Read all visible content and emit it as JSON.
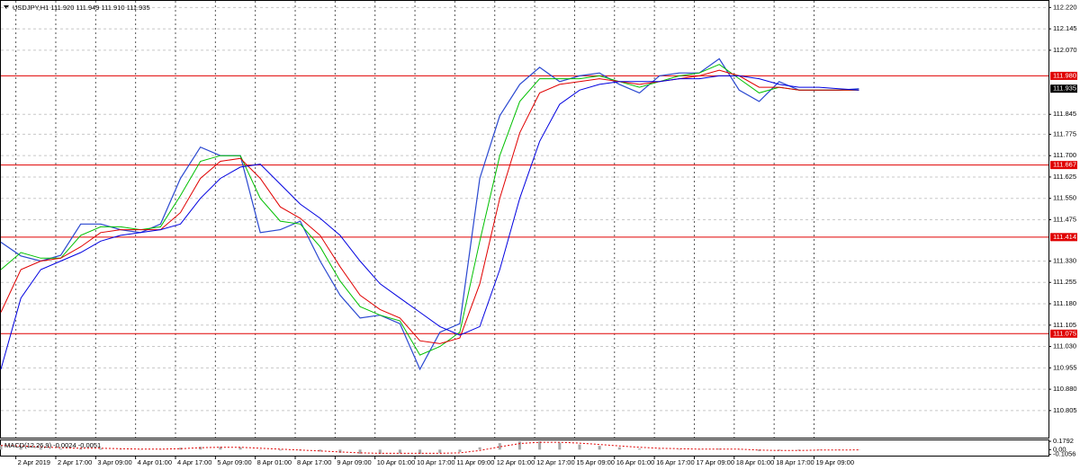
{
  "chart_data": [
    {
      "type": "line",
      "title": "USDJPY,H1  111.920 111.949 111.910 111.935",
      "x": [
        0,
        8,
        16,
        24,
        32,
        40,
        48,
        56,
        64,
        72,
        80,
        88,
        96,
        104,
        112,
        120,
        128,
        136,
        144,
        152,
        160,
        168,
        176,
        184,
        192,
        200,
        208,
        216,
        224,
        232,
        240,
        248,
        256,
        264,
        272,
        280,
        288,
        296,
        304,
        312,
        320,
        328,
        336,
        344
      ],
      "xlim": [
        0,
        420
      ],
      "xticks": [
        {
          "value": 6,
          "label": "2 Apr 2019"
        },
        {
          "value": 22,
          "label": "2 Apr 17:00"
        },
        {
          "value": 38,
          "label": "3 Apr 09:00"
        },
        {
          "value": 54,
          "label": "4 Apr 01:00"
        },
        {
          "value": 70,
          "label": "4 Apr 17:00"
        },
        {
          "value": 86,
          "label": "5 Apr 09:00"
        },
        {
          "value": 102,
          "label": "8 Apr 01:00"
        },
        {
          "value": 118,
          "label": "8 Apr 17:00"
        },
        {
          "value": 134,
          "label": "9 Apr 09:00"
        },
        {
          "value": 150,
          "label": "10 Apr 01:00"
        },
        {
          "value": 166,
          "label": "10 Apr 17:00"
        },
        {
          "value": 182,
          "label": "11 Apr 09:00"
        },
        {
          "value": 198,
          "label": "12 Apr 01:00"
        },
        {
          "value": 214,
          "label": "12 Apr 17:00"
        },
        {
          "value": 230,
          "label": "15 Apr 09:00"
        },
        {
          "value": 246,
          "label": "16 Apr 01:00"
        },
        {
          "value": 262,
          "label": "16 Apr 17:00"
        },
        {
          "value": 278,
          "label": "17 Apr 09:00"
        },
        {
          "value": 294,
          "label": "18 Apr 01:00"
        },
        {
          "value": 310,
          "label": "18 Apr 17:00"
        },
        {
          "value": 326,
          "label": "19 Apr 09:00"
        }
      ],
      "ylim": [
        110.71,
        112.24
      ],
      "yticks": [
        {
          "value": 112.22,
          "label": "112.220"
        },
        {
          "value": 112.145,
          "label": "112.145"
        },
        {
          "value": 112.07,
          "label": "112.070"
        },
        {
          "value": 111.845,
          "label": "111.845"
        },
        {
          "value": 111.775,
          "label": "111.775"
        },
        {
          "value": 111.7,
          "label": "111.700"
        },
        {
          "value": 111.625,
          "label": "111.625"
        },
        {
          "value": 111.55,
          "label": "111.550"
        },
        {
          "value": 111.475,
          "label": "111.475"
        },
        {
          "value": 111.33,
          "label": "111.330"
        },
        {
          "value": 111.255,
          "label": "111.255"
        },
        {
          "value": 111.18,
          "label": "111.180"
        },
        {
          "value": 111.105,
          "label": "111.105"
        },
        {
          "value": 111.03,
          "label": "111.030"
        },
        {
          "value": 110.955,
          "label": "110.955"
        },
        {
          "value": 110.88,
          "label": "110.880"
        },
        {
          "value": 110.805,
          "label": "110.805"
        }
      ],
      "grid": true,
      "levels": [
        {
          "value": 111.98,
          "label": "111.980"
        },
        {
          "value": 111.667,
          "label": "111.667"
        },
        {
          "value": 111.414,
          "label": "111.414"
        },
        {
          "value": 111.075,
          "label": "111.075"
        }
      ],
      "level_color": "#e00000",
      "last": {
        "value": 111.935,
        "label": "111.935"
      },
      "series": [
        {
          "color": "#2a48d0",
          "width": 1.2,
          "values": [
            111.396,
            111.348,
            111.33,
            111.35,
            111.46,
            111.46,
            111.44,
            111.43,
            111.46,
            111.62,
            111.73,
            111.7,
            111.7,
            111.43,
            111.44,
            111.47,
            111.33,
            111.21,
            111.13,
            111.14,
            111.11,
            110.95,
            111.08,
            111.11,
            111.62,
            111.84,
            111.95,
            112.01,
            111.96,
            111.98,
            111.99,
            111.95,
            111.92,
            111.98,
            111.99,
            111.99,
            112.04,
            111.93,
            111.89,
            111.96,
            111.93,
            111.93,
            111.93,
            111.935
          ]
        },
        {
          "color": "#00c000",
          "width": 1,
          "values": [
            111.3,
            111.36,
            111.34,
            111.34,
            111.42,
            111.45,
            111.45,
            111.44,
            111.45,
            111.56,
            111.68,
            111.7,
            111.7,
            111.55,
            111.47,
            111.46,
            111.38,
            111.26,
            111.17,
            111.14,
            111.12,
            111.0,
            111.03,
            111.08,
            111.4,
            111.7,
            111.89,
            111.97,
            111.97,
            111.97,
            111.98,
            111.96,
            111.94,
            111.96,
            111.98,
            111.99,
            112.02,
            111.97,
            111.92,
            111.94,
            111.93,
            111.93,
            111.93,
            111.93
          ]
        },
        {
          "color": "#e00000",
          "width": 1,
          "values": [
            111.15,
            111.3,
            111.33,
            111.34,
            111.38,
            111.43,
            111.44,
            111.44,
            111.44,
            111.5,
            111.62,
            111.68,
            111.69,
            111.62,
            111.52,
            111.48,
            111.42,
            111.31,
            111.21,
            111.16,
            111.13,
            111.05,
            111.04,
            111.06,
            111.25,
            111.55,
            111.78,
            111.92,
            111.95,
            111.96,
            111.97,
            111.96,
            111.95,
            111.96,
            111.97,
            111.98,
            112.0,
            111.98,
            111.94,
            111.94,
            111.93,
            111.93,
            111.93,
            111.93
          ]
        },
        {
          "color": "#0000e0",
          "width": 1,
          "values": [
            110.95,
            111.2,
            111.3,
            111.33,
            111.36,
            111.4,
            111.42,
            111.43,
            111.44,
            111.46,
            111.55,
            111.62,
            111.66,
            111.67,
            111.6,
            111.53,
            111.48,
            111.42,
            111.33,
            111.25,
            111.2,
            111.15,
            111.1,
            111.07,
            111.1,
            111.3,
            111.55,
            111.75,
            111.88,
            111.93,
            111.95,
            111.96,
            111.96,
            111.96,
            111.97,
            111.97,
            111.98,
            111.98,
            111.97,
            111.95,
            111.94,
            111.94,
            111.935,
            111.93
          ]
        }
      ]
    },
    {
      "type": "macd",
      "title": "MACD(12,26,9) -0.0024 -0.0051",
      "ylim": [
        -0.13,
        0.2
      ],
      "yticks": [
        0.1792,
        {
          "value": 0,
          "label": "0.00"
        },
        -0.1056
      ],
      "series": [
        {
          "color": "#a8a8a8",
          "values": [
            0.1,
            0.07,
            0.04,
            0.02,
            0.03,
            0.03,
            0.01,
            0.0,
            0.01,
            0.04,
            0.06,
            0.06,
            0.05,
            0.0,
            -0.02,
            -0.02,
            -0.04,
            -0.07,
            -0.09,
            -0.09,
            -0.08,
            -0.09,
            -0.07,
            -0.05,
            0.05,
            0.14,
            0.18,
            0.18,
            0.15,
            0.11,
            0.08,
            0.05,
            0.02,
            0.01,
            0.01,
            0.01,
            0.02,
            0.0,
            -0.03,
            -0.02,
            -0.02,
            -0.01,
            -0.01,
            -0.0024
          ]
        },
        {
          "color": "#e00000",
          "values": [
            0.09,
            0.08,
            0.06,
            0.04,
            0.03,
            0.03,
            0.02,
            0.01,
            0.01,
            0.02,
            0.04,
            0.05,
            0.05,
            0.03,
            0.01,
            -0.01,
            -0.03,
            -0.05,
            -0.07,
            -0.08,
            -0.08,
            -0.08,
            -0.08,
            -0.07,
            -0.02,
            0.06,
            0.13,
            0.16,
            0.16,
            0.14,
            0.11,
            0.08,
            0.05,
            0.03,
            0.02,
            0.01,
            0.01,
            0.01,
            -0.01,
            -0.02,
            -0.02,
            -0.01,
            -0.01,
            -0.0051
          ]
        }
      ]
    }
  ]
}
